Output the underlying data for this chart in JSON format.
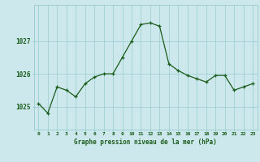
{
  "x": [
    0,
    1,
    2,
    3,
    4,
    5,
    6,
    7,
    8,
    9,
    10,
    11,
    12,
    13,
    14,
    15,
    16,
    17,
    18,
    19,
    20,
    21,
    22,
    23
  ],
  "y": [
    1025.1,
    1024.8,
    1025.6,
    1025.5,
    1025.3,
    1025.7,
    1025.9,
    1026.0,
    1026.0,
    1026.5,
    1027.0,
    1027.5,
    1027.55,
    1027.45,
    1026.3,
    1026.1,
    1025.95,
    1025.85,
    1025.75,
    1025.95,
    1025.95,
    1025.5,
    1025.6,
    1025.7
  ],
  "bg_color": "#cce8ec",
  "line_color": "#1a5c1a",
  "marker_color": "#1a5c1a",
  "grid_color": "#99cccc",
  "xlabel": "Graphe pression niveau de la mer (hPa)",
  "xlabel_color": "#1a5c1a",
  "tick_color": "#1a5c1a",
  "yticks": [
    1025,
    1026,
    1027
  ],
  "ylim": [
    1024.3,
    1028.1
  ],
  "xlim": [
    -0.5,
    23.5
  ],
  "figsize": [
    3.2,
    2.0
  ],
  "dpi": 100
}
